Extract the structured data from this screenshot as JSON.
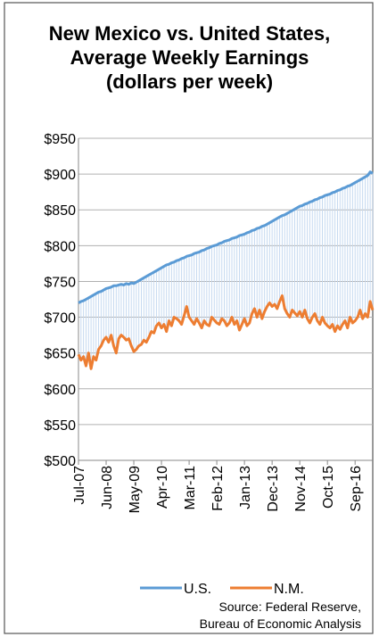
{
  "chart_data": {
    "type": "line",
    "title": "New Mexico vs. United States, Average Weekly Earnings  (dollars per week)",
    "categories": [
      "Jul-07",
      null,
      null,
      null,
      null,
      null,
      null,
      null,
      null,
      null,
      null,
      "Jun-08",
      null,
      null,
      null,
      null,
      null,
      null,
      null,
      null,
      null,
      null,
      "May-09",
      null,
      null,
      null,
      null,
      null,
      null,
      null,
      null,
      null,
      null,
      "Apr-10",
      null,
      null,
      null,
      null,
      null,
      null,
      null,
      null,
      null,
      null,
      "Mar-11",
      null,
      null,
      null,
      null,
      null,
      null,
      null,
      null,
      null,
      null,
      "Feb-12",
      null,
      null,
      null,
      null,
      null,
      null,
      null,
      null,
      null,
      null,
      "Jan-13",
      null,
      null,
      null,
      null,
      null,
      null,
      null,
      null,
      null,
      null,
      "Dec-13",
      null,
      null,
      null,
      null,
      null,
      null,
      null,
      null,
      null,
      null,
      "Nov-14",
      null,
      null,
      null,
      null,
      null,
      null,
      null,
      null,
      null,
      null,
      "Oct-15",
      null,
      null,
      null,
      null,
      null,
      null,
      null,
      null,
      null,
      null,
      "Sep-16",
      null,
      null,
      null,
      null,
      null,
      null,
      null
    ],
    "series": [
      {
        "name": "U.S.",
        "color": "#5b9bd5",
        "values": [
          720,
          722,
          723,
          725,
          727,
          729,
          731,
          733,
          735,
          736,
          738,
          740,
          741,
          742,
          744,
          744,
          745,
          746,
          745,
          747,
          746,
          748,
          747,
          749,
          751,
          753,
          755,
          757,
          759,
          761,
          763,
          765,
          767,
          769,
          771,
          773,
          774,
          776,
          777,
          779,
          780,
          782,
          783,
          785,
          786,
          787,
          789,
          790,
          791,
          793,
          794,
          796,
          797,
          799,
          800,
          801,
          803,
          804,
          806,
          807,
          808,
          810,
          811,
          812,
          814,
          815,
          816,
          818,
          819,
          821,
          822,
          824,
          825,
          827,
          828,
          830,
          832,
          834,
          836,
          838,
          840,
          842,
          843,
          845,
          847,
          849,
          851,
          853,
          855,
          856,
          858,
          859,
          861,
          862,
          864,
          865,
          867,
          868,
          870,
          871,
          872,
          874,
          875,
          877,
          878,
          880,
          881,
          883,
          884,
          886,
          888,
          890,
          892,
          894,
          896,
          898,
          903,
          901
        ]
      },
      {
        "name": "N.M.",
        "color": "#ed7d31",
        "values": [
          648,
          640,
          645,
          632,
          650,
          628,
          645,
          640,
          655,
          660,
          668,
          672,
          665,
          675,
          660,
          650,
          670,
          675,
          672,
          668,
          670,
          660,
          652,
          655,
          660,
          662,
          668,
          665,
          672,
          680,
          678,
          688,
          692,
          685,
          690,
          680,
          695,
          688,
          700,
          698,
          695,
          690,
          702,
          715,
          700,
          695,
          690,
          698,
          692,
          685,
          695,
          690,
          688,
          700,
          696,
          692,
          690,
          698,
          695,
          688,
          692,
          700,
          690,
          695,
          682,
          690,
          698,
          688,
          692,
          705,
          712,
          700,
          710,
          698,
          708,
          715,
          720,
          715,
          718,
          712,
          722,
          730,
          712,
          705,
          700,
          710,
          706,
          702,
          708,
          700,
          710,
          698,
          692,
          700,
          705,
          695,
          690,
          700,
          692,
          688,
          685,
          690,
          680,
          688,
          683,
          690,
          695,
          685,
          700,
          692,
          695,
          700,
          710,
          698,
          705,
          700,
          722,
          710
        ]
      }
    ],
    "ylim": [
      500,
      950
    ],
    "yticks": [
      {
        "value": 500,
        "label": "$500"
      },
      {
        "value": 550,
        "label": "$550"
      },
      {
        "value": 600,
        "label": "$600"
      },
      {
        "value": 650,
        "label": "$650"
      },
      {
        "value": 700,
        "label": "$700"
      },
      {
        "value": 750,
        "label": "$750"
      },
      {
        "value": 800,
        "label": "$800"
      },
      {
        "value": 850,
        "label": "$850"
      },
      {
        "value": 900,
        "label": "$900"
      },
      {
        "value": 950,
        "label": "$950"
      }
    ],
    "grid": true,
    "fill_between_color": "#c5d9f0",
    "source": [
      "Source: Federal Reserve,",
      "Bureau of Economic Analysis"
    ]
  }
}
